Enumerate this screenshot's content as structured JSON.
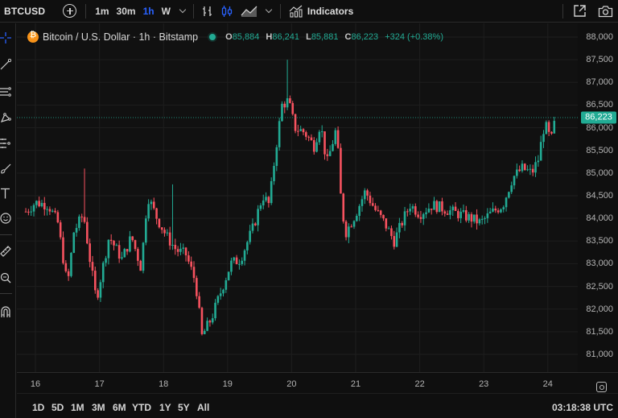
{
  "topbar": {
    "symbol": "BTCUSD",
    "timeframes": [
      "1m",
      "30m",
      "1h",
      "W"
    ],
    "active_timeframe": "1h",
    "indicators_label": "Indicators",
    "icons": [
      "add-symbol-icon",
      "bar-style-icon",
      "candle-style-icon",
      "area-style-icon",
      "chevron-down-icon",
      "indicators-icon",
      "fullscreen-icon",
      "camera-icon"
    ]
  },
  "left_toolbar": {
    "icons": [
      "crosshair-icon",
      "trendline-icon",
      "fib-lines-icon",
      "pattern-icon",
      "prediction-icon",
      "brush-icon",
      "text-icon",
      "emoji-icon",
      "ruler-icon",
      "zoom-icon",
      "magnet-icon"
    ]
  },
  "legend": {
    "title": "Bitcoin / U.S. Dollar · 1h · Bitstamp",
    "o_label": "O",
    "open": "85,884",
    "h_label": "H",
    "high": "86,241",
    "l_label": "L",
    "low": "85,881",
    "c_label": "C",
    "close": "86,223",
    "change": "+324 (+0.38%)"
  },
  "last_price": "86,223",
  "colors": {
    "up": "#22ab94",
    "down": "#f7525f",
    "background": "#111111",
    "grid": "#1e1e1e",
    "active_timeframe": "#2962ff"
  },
  "range_buttons": [
    "1D",
    "5D",
    "1M",
    "3M",
    "6M",
    "YTD",
    "1Y",
    "5Y",
    "All"
  ],
  "clock": "03:18:38 UTC",
  "chart_data": {
    "type": "candlestick",
    "title": "Bitcoin / U.S. Dollar · 1h · Bitstamp",
    "xlabel": "",
    "ylabel": "",
    "x_ticks": [
      "16",
      "17",
      "18",
      "19",
      "20",
      "21",
      "22",
      "23",
      "24"
    ],
    "y_ticks": [
      "88,000",
      "87,500",
      "87,000",
      "86,500",
      "86,000",
      "85,500",
      "85,000",
      "84,500",
      "84,000",
      "83,500",
      "83,000",
      "82,500",
      "82,000",
      "81,500",
      "81,000"
    ],
    "ylim": [
      80700,
      88150
    ],
    "grid": true,
    "last_price": 86223,
    "series": [
      {
        "name": "BTCUSD 1h",
        "anchors_price_by_day": [
          {
            "day": 15.85,
            "price": 84150
          },
          {
            "day": 16.0,
            "price": 84350
          },
          {
            "day": 16.2,
            "price": 84300
          },
          {
            "day": 16.35,
            "price": 83900
          },
          {
            "day": 16.5,
            "price": 82500
          },
          {
            "day": 16.6,
            "price": 83700
          },
          {
            "day": 16.75,
            "price": 84100
          },
          {
            "day": 16.85,
            "price": 83100
          },
          {
            "day": 16.95,
            "price": 82200
          },
          {
            "day": 17.15,
            "price": 83600
          },
          {
            "day": 17.35,
            "price": 83100
          },
          {
            "day": 17.5,
            "price": 83600
          },
          {
            "day": 17.65,
            "price": 82900
          },
          {
            "day": 17.75,
            "price": 84500
          },
          {
            "day": 17.9,
            "price": 84000
          },
          {
            "day": 18.05,
            "price": 83600
          },
          {
            "day": 18.2,
            "price": 83300
          },
          {
            "day": 18.35,
            "price": 83200
          },
          {
            "day": 18.5,
            "price": 82600
          },
          {
            "day": 18.6,
            "price": 81400
          },
          {
            "day": 18.75,
            "price": 81800
          },
          {
            "day": 18.9,
            "price": 82400
          },
          {
            "day": 19.05,
            "price": 83000
          },
          {
            "day": 19.2,
            "price": 83100
          },
          {
            "day": 19.4,
            "price": 83800
          },
          {
            "day": 19.55,
            "price": 84500
          },
          {
            "day": 19.65,
            "price": 84300
          },
          {
            "day": 19.75,
            "price": 85500
          },
          {
            "day": 19.85,
            "price": 86500
          },
          {
            "day": 19.95,
            "price": 86600
          },
          {
            "day": 20.05,
            "price": 86000
          },
          {
            "day": 20.2,
            "price": 85900
          },
          {
            "day": 20.35,
            "price": 85600
          },
          {
            "day": 20.45,
            "price": 86100
          },
          {
            "day": 20.55,
            "price": 85200
          },
          {
            "day": 20.7,
            "price": 86000
          },
          {
            "day": 20.78,
            "price": 84200
          },
          {
            "day": 20.85,
            "price": 83700
          },
          {
            "day": 21.0,
            "price": 84100
          },
          {
            "day": 21.15,
            "price": 84600
          },
          {
            "day": 21.3,
            "price": 84200
          },
          {
            "day": 21.45,
            "price": 83900
          },
          {
            "day": 21.6,
            "price": 83500
          },
          {
            "day": 21.75,
            "price": 84000
          },
          {
            "day": 21.85,
            "price": 84300
          },
          {
            "day": 22.0,
            "price": 84100
          },
          {
            "day": 22.2,
            "price": 84300
          },
          {
            "day": 22.4,
            "price": 84200
          },
          {
            "day": 22.6,
            "price": 84100
          },
          {
            "day": 22.8,
            "price": 84000
          },
          {
            "day": 22.95,
            "price": 83900
          },
          {
            "day": 23.1,
            "price": 84100
          },
          {
            "day": 23.3,
            "price": 84300
          },
          {
            "day": 23.45,
            "price": 84900
          },
          {
            "day": 23.6,
            "price": 85100
          },
          {
            "day": 23.75,
            "price": 85000
          },
          {
            "day": 23.85,
            "price": 85300
          },
          {
            "day": 23.95,
            "price": 86100
          },
          {
            "day": 24.05,
            "price": 85700
          },
          {
            "day": 24.12,
            "price": 86223
          }
        ]
      }
    ]
  }
}
